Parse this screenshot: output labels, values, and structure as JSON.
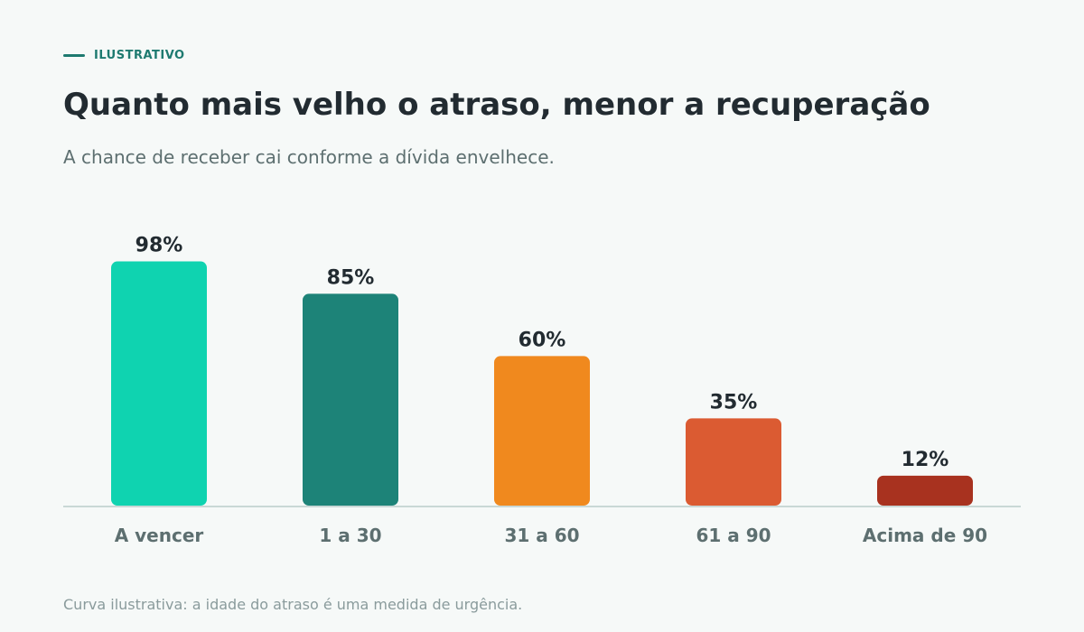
{
  "header": {
    "eyebrow": "ILUSTRATIVO",
    "title": "Quanto mais velho o atraso, menor a recuperação",
    "subtitle": "A chance de receber cai conforme a dívida envelhece."
  },
  "footnote": "Curva ilustrativa: a idade do atraso é uma medida de urgência.",
  "chart_data": {
    "type": "bar",
    "title": "Quanto mais velho o atraso, menor a recuperação",
    "subtitle": "A chance de receber cai conforme a dívida envelhece.",
    "categories": [
      "A vencer",
      "1 a 30",
      "31 a 60",
      "61 a 90",
      "Acima de 90"
    ],
    "values": [
      98,
      85,
      60,
      35,
      12
    ],
    "value_labels": [
      "98%",
      "85%",
      "60%",
      "35%",
      "12%"
    ],
    "colors": [
      "#0fd3b0",
      "#1d8378",
      "#f0891e",
      "#db5b32",
      "#a8321f"
    ],
    "xlabel": "",
    "ylabel": "",
    "ylim": [
      0,
      100
    ],
    "grid": false,
    "legend": "none"
  }
}
